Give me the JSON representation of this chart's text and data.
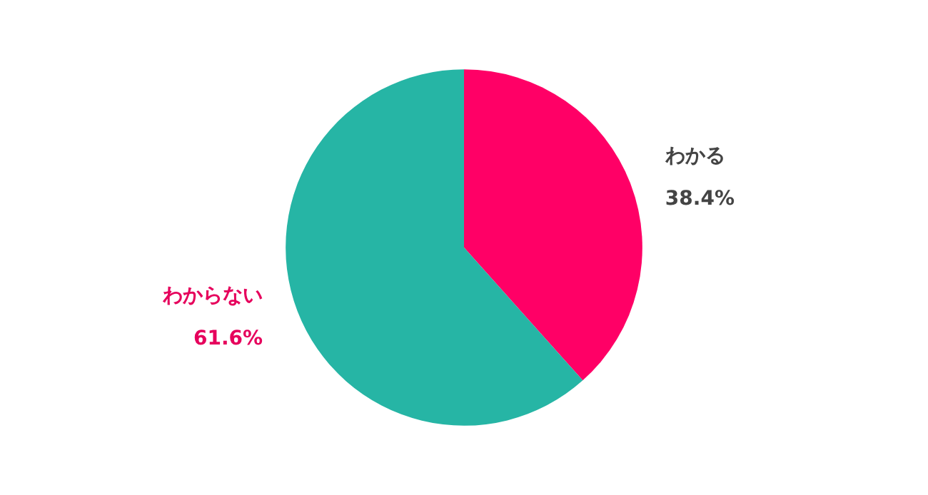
{
  "chart_data": {
    "type": "pie",
    "categories": [
      "わかる",
      "わからない"
    ],
    "values": [
      38.4,
      61.6
    ],
    "value_labels": [
      "38.4%",
      "61.6%"
    ],
    "colors": [
      "#ff0066",
      "#26b5a5"
    ]
  }
}
